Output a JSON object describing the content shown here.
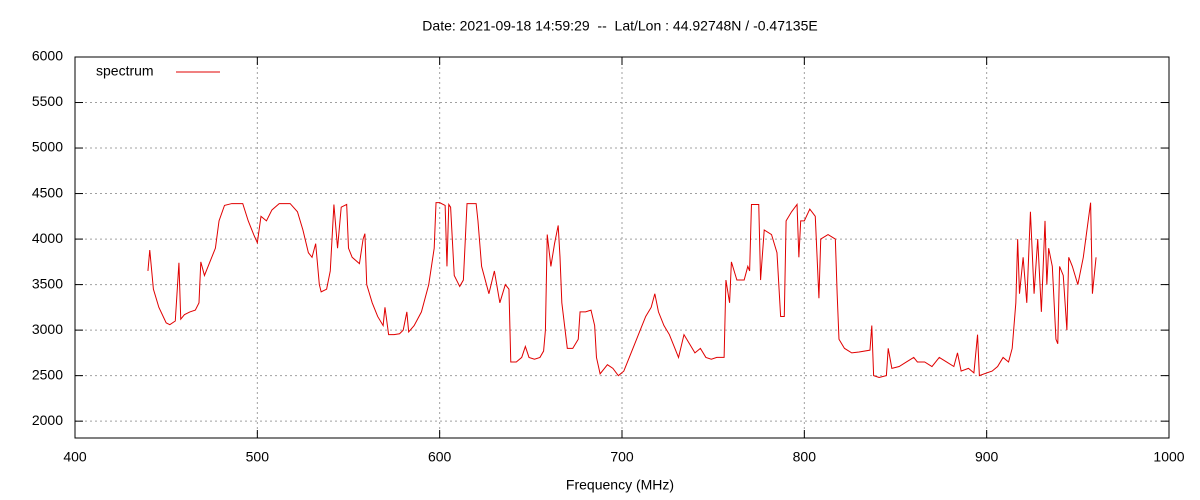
{
  "chart_data": {
    "type": "line",
    "title": "Date: 2021-09-18 14:59:29  --  Lat/Lon : 44.92748N / -0.47135E",
    "x_label": "Frequency (MHz)",
    "xlim": [
      400,
      1000
    ],
    "xticks": [
      400,
      500,
      600,
      700,
      800,
      900,
      1000
    ],
    "ylim": [
      1815,
      6000
    ],
    "yticks": [
      2000,
      2500,
      3000,
      3500,
      4000,
      4500,
      5000,
      5500,
      6000
    ],
    "grid": true,
    "legend": "top-left",
    "x": [
      440,
      441,
      443,
      446,
      450,
      452,
      455,
      457,
      458,
      460,
      463,
      466,
      468,
      469,
      471,
      474,
      477,
      479,
      482,
      486,
      490,
      492,
      495,
      498,
      500,
      502,
      505,
      508,
      512,
      518,
      522,
      525,
      528,
      530,
      532,
      534,
      535,
      538,
      540,
      542,
      544,
      546,
      549,
      550,
      552,
      556,
      558,
      559,
      560,
      563,
      566,
      569,
      570,
      572,
      575,
      578,
      580,
      582,
      583,
      586,
      590,
      594,
      597,
      598,
      600,
      603,
      604,
      605,
      606,
      608,
      611,
      613,
      615,
      620,
      621,
      623,
      625,
      627,
      630,
      633,
      636,
      638,
      639,
      642,
      645,
      647,
      649,
      652,
      655,
      657,
      658,
      659,
      661,
      663,
      665,
      666,
      667,
      670,
      673,
      676,
      677,
      680,
      683,
      685,
      686,
      688,
      692,
      695,
      698,
      701,
      704,
      707,
      710,
      713,
      716,
      718,
      720,
      723,
      726,
      729,
      731,
      734,
      737,
      740,
      743,
      746,
      749,
      752,
      756,
      757,
      759,
      760,
      763,
      767,
      769,
      770,
      771,
      775,
      776,
      778,
      782,
      785,
      787,
      789,
      790,
      793,
      796,
      797,
      798,
      800,
      803,
      806,
      808,
      809,
      813,
      817,
      818,
      819,
      822,
      826,
      830,
      836,
      837,
      838,
      841,
      845,
      846,
      848,
      852,
      856,
      860,
      862,
      866,
      870,
      874,
      878,
      882,
      884,
      886,
      890,
      893,
      895,
      896,
      900,
      903,
      906,
      909,
      912,
      914,
      916,
      917,
      918,
      920,
      922,
      924,
      926,
      928,
      930,
      932,
      933,
      934,
      936,
      938,
      939,
      940,
      942,
      944,
      945,
      947,
      950,
      953,
      957,
      958,
      960
    ],
    "series": [
      {
        "name": "spectrum",
        "color": "#e00000",
        "values": [
          3650,
          3880,
          3450,
          3250,
          3080,
          3060,
          3100,
          3740,
          3120,
          3170,
          3200,
          3220,
          3300,
          3750,
          3600,
          3750,
          3900,
          4200,
          4370,
          4390,
          4390,
          4390,
          4200,
          4050,
          3960,
          4250,
          4200,
          4320,
          4390,
          4390,
          4300,
          4100,
          3850,
          3800,
          3950,
          3500,
          3420,
          3450,
          3650,
          4380,
          3900,
          4350,
          4380,
          3900,
          3800,
          3730,
          4000,
          4060,
          3500,
          3300,
          3150,
          3050,
          3250,
          2950,
          2950,
          2960,
          3000,
          3200,
          2980,
          3050,
          3200,
          3500,
          3900,
          4400,
          4400,
          4370,
          3700,
          4380,
          4350,
          3600,
          3480,
          3550,
          4390,
          4390,
          4200,
          3700,
          3550,
          3400,
          3650,
          3300,
          3500,
          3450,
          2650,
          2650,
          2700,
          2820,
          2700,
          2680,
          2700,
          2770,
          3000,
          4050,
          3700,
          3950,
          4150,
          3800,
          3300,
          2800,
          2800,
          2900,
          3200,
          3200,
          3220,
          3050,
          2700,
          2520,
          2620,
          2580,
          2500,
          2550,
          2700,
          2850,
          3000,
          3150,
          3250,
          3400,
          3200,
          3050,
          2950,
          2800,
          2700,
          2950,
          2850,
          2750,
          2800,
          2700,
          2680,
          2700,
          2700,
          3550,
          3300,
          3750,
          3550,
          3550,
          3700,
          3650,
          4380,
          4380,
          3550,
          4100,
          4050,
          3850,
          3150,
          3150,
          4200,
          4300,
          4380,
          3800,
          4200,
          4200,
          4330,
          4250,
          3350,
          4000,
          4050,
          4000,
          3400,
          2900,
          2800,
          2750,
          2760,
          2780,
          3050,
          2500,
          2480,
          2500,
          2800,
          2580,
          2600,
          2650,
          2700,
          2650,
          2650,
          2600,
          2700,
          2650,
          2600,
          2750,
          2550,
          2580,
          2530,
          2950,
          2500,
          2530,
          2550,
          2600,
          2700,
          2650,
          2800,
          3300,
          4000,
          3400,
          3800,
          3300,
          4300,
          3400,
          4000,
          3200,
          4200,
          3500,
          3900,
          3700,
          2900,
          2850,
          3700,
          3600,
          3000,
          3800,
          3700,
          3500,
          3800,
          4400,
          3400,
          3800
        ]
      }
    ]
  }
}
